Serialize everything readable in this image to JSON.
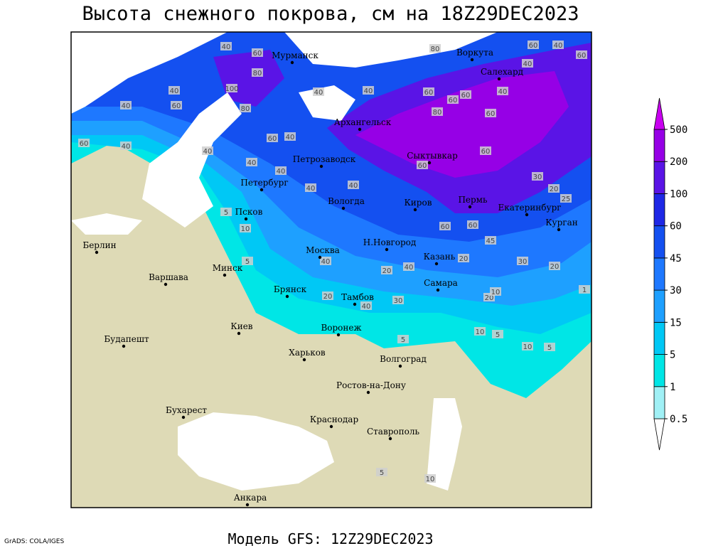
{
  "title": "Высота снежного покрова, см на 18Z29DEC2023",
  "footer": "Модель GFS: 12Z29DEC2023",
  "credit": "GrADS: COLA/IGES",
  "legend": {
    "levels": [
      0.5,
      1,
      5,
      15,
      30,
      45,
      60,
      100,
      200,
      500
    ],
    "colors": [
      "#ffffff",
      "#a0f0f5",
      "#00e6e6",
      "#00c8f5",
      "#1ea0ff",
      "#1e78ff",
      "#1450f0",
      "#1e28e6",
      "#5a14e6",
      "#9600e6",
      "#c800f0"
    ]
  },
  "cities": [
    "Мурманск",
    "Воркута",
    "Салехард",
    "Архангельск",
    "Сыктывкар",
    "Петрозаводск",
    "Петербург",
    "Вологда",
    "Киров",
    "Пермь",
    "Екатеринбург",
    "Курган",
    "Псков",
    "Берлин",
    "Н.Новгород",
    "Москва",
    "Казань",
    "Минск",
    "Варшава",
    "Самара",
    "Брянск",
    "Тамбов",
    "Киев",
    "Воронеж",
    "Будапешт",
    "Харьков",
    "Волгоград",
    "Ростов-на-Дону",
    "Бухарест",
    "Краснодар",
    "Ставрополь",
    "Анкара"
  ],
  "contour_labels": [
    40,
    60,
    80,
    100,
    40,
    60,
    40,
    60,
    40,
    40,
    80,
    60,
    40,
    40,
    40,
    60,
    80,
    60,
    60,
    60,
    40,
    60,
    40,
    40,
    60,
    60,
    60,
    40,
    40,
    10,
    5,
    40,
    40,
    60,
    60,
    45,
    30,
    20,
    25,
    40,
    40,
    20,
    20,
    30,
    40,
    20,
    10,
    10,
    5,
    10,
    5,
    30,
    20,
    1,
    5,
    5,
    5,
    10,
    80,
    20
  ]
}
